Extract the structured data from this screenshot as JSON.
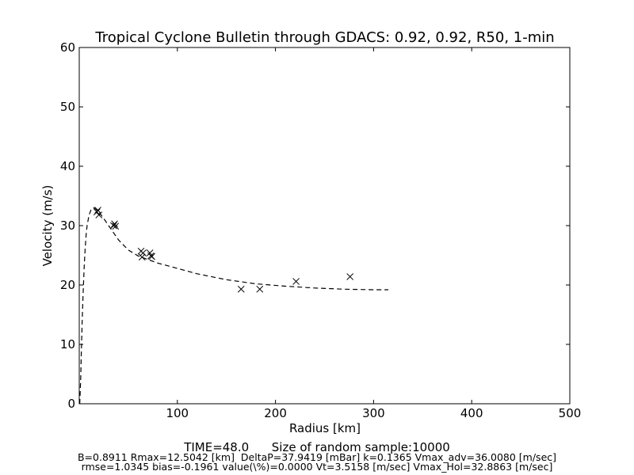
{
  "chart_data": {
    "type": "scatter",
    "title": "Tropical Cyclone Bulletin through GDACS: 0.92, 0.92, R50, 1-min",
    "xlabel": "Radius [km]",
    "ylabel": "Velocity (m/s)",
    "xlim": [
      0,
      500
    ],
    "ylim": [
      0,
      60
    ],
    "xticks": [
      100,
      200,
      300,
      400,
      500
    ],
    "yticks": [
      0,
      10,
      20,
      30,
      40,
      50,
      60
    ],
    "grid": false,
    "legend": "none",
    "observations": {
      "marker": "x",
      "points": [
        [
          18,
          32.3
        ],
        [
          19,
          32.6
        ],
        [
          20,
          31.8
        ],
        [
          35,
          30.0
        ],
        [
          36,
          30.3
        ],
        [
          37,
          29.9
        ],
        [
          63,
          25.7
        ],
        [
          64,
          24.7
        ],
        [
          65,
          25.4
        ],
        [
          72,
          25.4
        ],
        [
          73,
          24.9
        ],
        [
          74,
          24.8
        ],
        [
          165,
          19.3
        ],
        [
          184,
          19.3
        ],
        [
          221,
          20.6
        ],
        [
          276,
          21.4
        ]
      ]
    },
    "fit_curve": {
      "style": "dashed",
      "x": [
        0.5,
        1,
        1.5,
        2,
        3,
        4,
        5,
        6,
        7,
        8,
        10,
        12.5,
        15,
        20,
        25,
        30,
        40,
        50,
        60,
        70,
        80,
        100,
        120,
        150,
        180,
        210,
        240,
        270,
        300,
        315
      ],
      "y": [
        0.0,
        2.0,
        4.5,
        8.0,
        14.0,
        19.0,
        23.0,
        26.0,
        28.5,
        30.0,
        31.8,
        32.9,
        33.0,
        32.3,
        31.2,
        30.0,
        27.6,
        25.9,
        24.9,
        24.3,
        23.7,
        22.8,
        21.9,
        20.9,
        20.2,
        19.8,
        19.5,
        19.3,
        19.2,
        19.2
      ]
    },
    "footer": {
      "line1": "TIME=48.0      Size of random sample:10000",
      "line2": "B=0.8911 Rmax=12.5042 [km]  DeltaP=37.9419 [mBar] k=0.1365 Vmax_adv=36.0080 [m/sec]",
      "line3": "rmse=1.0345 bias=-0.1961 value(\\%)=0.0000 Vt=3.5158 [m/sec] Vmax_Hol=32.8863 [m/sec]"
    }
  }
}
